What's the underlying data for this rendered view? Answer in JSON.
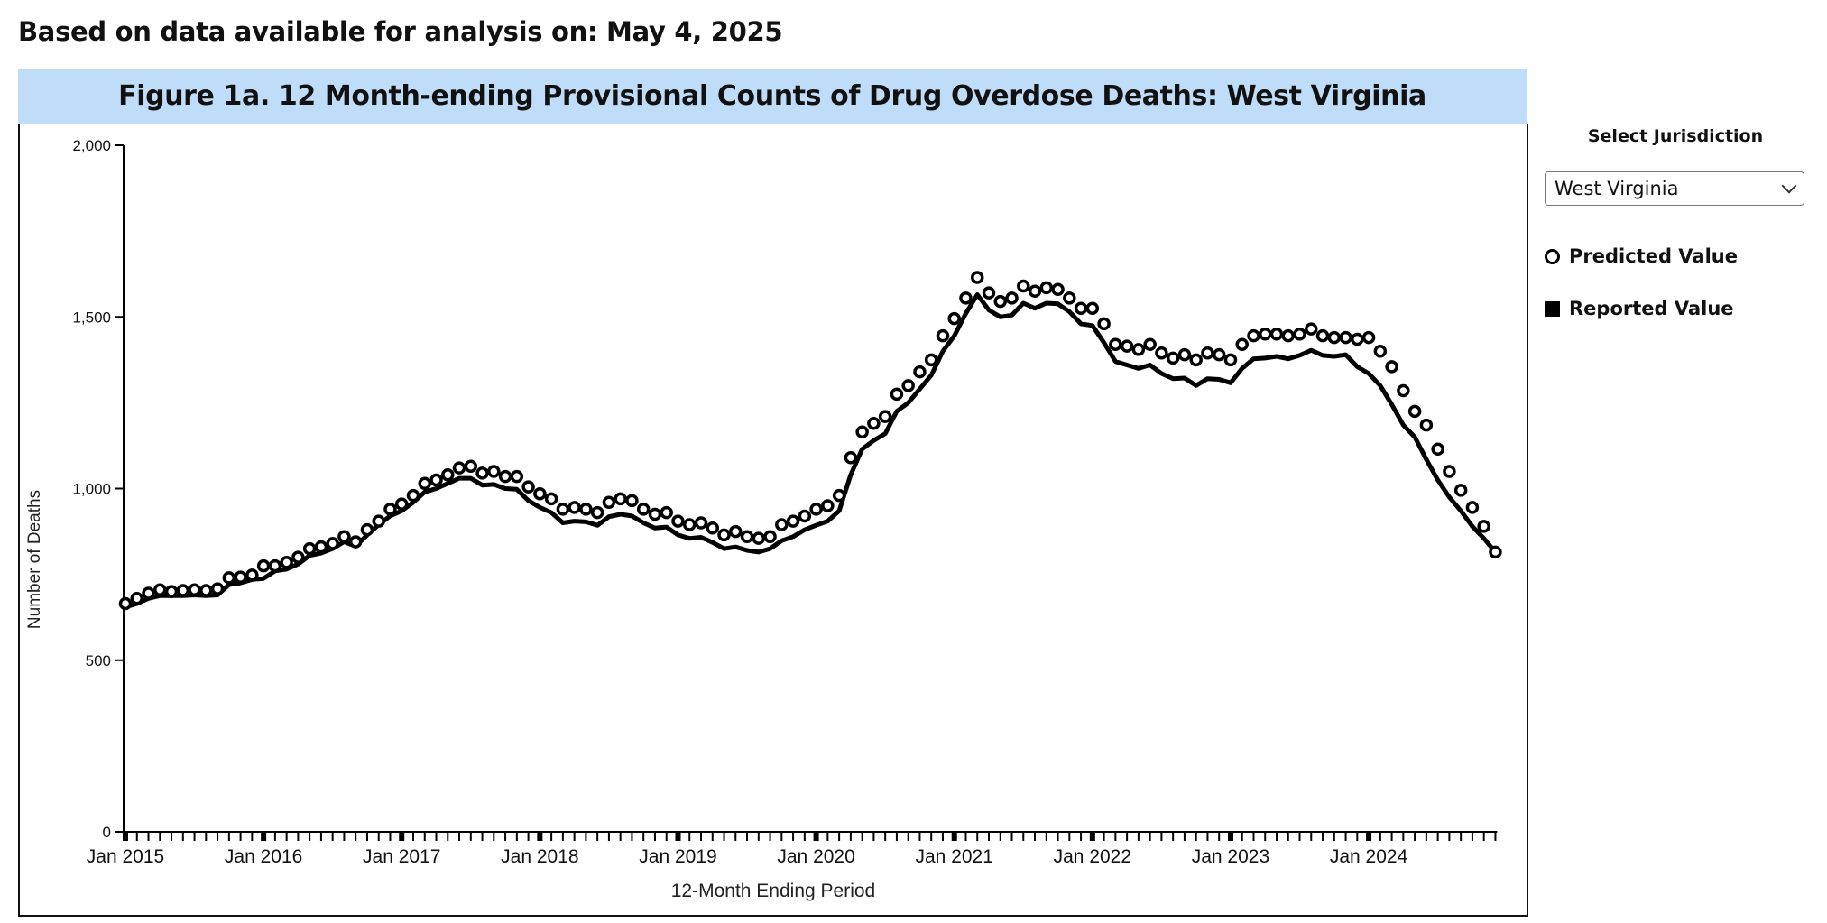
{
  "header": {
    "as_of": "Based on data available for analysis on: May 4, 2025"
  },
  "figure": {
    "title": "Figure 1a. 12 Month-ending Provisional Counts of Drug Overdose Deaths: West Virginia"
  },
  "sidebar": {
    "select_label": "Select Jurisdiction",
    "selected_jurisdiction": "West Virginia",
    "legend": [
      {
        "label": "Predicted Value",
        "icon": "open-circle"
      },
      {
        "label": "Reported Value",
        "icon": "filled-square"
      }
    ]
  },
  "chart_data": {
    "type": "line",
    "title": "Figure 1a. 12 Month-ending Provisional Counts of Drug Overdose Deaths: West Virginia",
    "xlabel": "12-Month Ending Period",
    "ylabel": "Number of Deaths",
    "ylim": [
      0,
      2000
    ],
    "yticks": [
      0,
      500,
      1000,
      1500,
      2000
    ],
    "ytick_labels": [
      "0",
      "500",
      "1,000",
      "1,500",
      "2,000"
    ],
    "x_start": "Jan 2015",
    "x_end": "Dec 2024",
    "x_frequency": "monthly",
    "xtick_labels": [
      "Jan 2015",
      "Jan 2016",
      "Jan 2017",
      "Jan 2018",
      "Jan 2019",
      "Jan 2020",
      "Jan 2021",
      "Jan 2022",
      "Jan 2023",
      "Jan 2024"
    ],
    "grid": false,
    "legend_position": "right",
    "series": [
      {
        "name": "Predicted Value",
        "marker": "open-circle",
        "values": [
          665,
          680,
          695,
          705,
          700,
          703,
          705,
          703,
          708,
          740,
          742,
          748,
          775,
          775,
          785,
          800,
          825,
          830,
          840,
          860,
          845,
          880,
          905,
          940,
          955,
          980,
          1015,
          1025,
          1040,
          1060,
          1065,
          1045,
          1050,
          1035,
          1035,
          1005,
          985,
          970,
          940,
          945,
          940,
          930,
          960,
          970,
          965,
          940,
          925,
          930,
          905,
          895,
          900,
          885,
          865,
          875,
          860,
          855,
          860,
          895,
          905,
          920,
          940,
          950,
          980,
          1090,
          1165,
          1190,
          1210,
          1275,
          1300,
          1340,
          1375,
          1445,
          1495,
          1555,
          1615,
          1570,
          1545,
          1555,
          1590,
          1575,
          1585,
          1580,
          1555,
          1525,
          1525,
          1480,
          1420,
          1415,
          1405,
          1420,
          1395,
          1380,
          1390,
          1375,
          1395,
          1390,
          1375,
          1420,
          1445,
          1450,
          1450,
          1445,
          1450,
          1465,
          1445,
          1440,
          1440,
          1435,
          1440,
          1400,
          1355,
          1285,
          1225,
          1185,
          1115,
          1050,
          995,
          945,
          890,
          815
        ]
      },
      {
        "name": "Reported Value",
        "marker": "line",
        "values": [
          655,
          665,
          680,
          688,
          688,
          688,
          690,
          688,
          690,
          720,
          725,
          735,
          738,
          760,
          765,
          780,
          805,
          812,
          825,
          845,
          832,
          865,
          895,
          920,
          935,
          960,
          990,
          1000,
          1015,
          1030,
          1030,
          1010,
          1012,
          1000,
          998,
          965,
          945,
          930,
          900,
          905,
          903,
          893,
          918,
          925,
          920,
          900,
          885,
          888,
          865,
          855,
          858,
          843,
          825,
          830,
          820,
          815,
          825,
          848,
          860,
          880,
          893,
          905,
          935,
          1040,
          1115,
          1140,
          1160,
          1225,
          1250,
          1290,
          1330,
          1400,
          1445,
          1510,
          1565,
          1520,
          1500,
          1505,
          1540,
          1525,
          1540,
          1538,
          1515,
          1480,
          1475,
          1425,
          1370,
          1360,
          1350,
          1360,
          1335,
          1320,
          1322,
          1300,
          1320,
          1318,
          1308,
          1350,
          1378,
          1380,
          1385,
          1378,
          1388,
          1403,
          1388,
          1385,
          1390,
          1355,
          1335,
          1300,
          1245,
          1185,
          1150,
          1085,
          1025,
          975,
          935,
          890,
          855,
          815
        ]
      }
    ]
  }
}
